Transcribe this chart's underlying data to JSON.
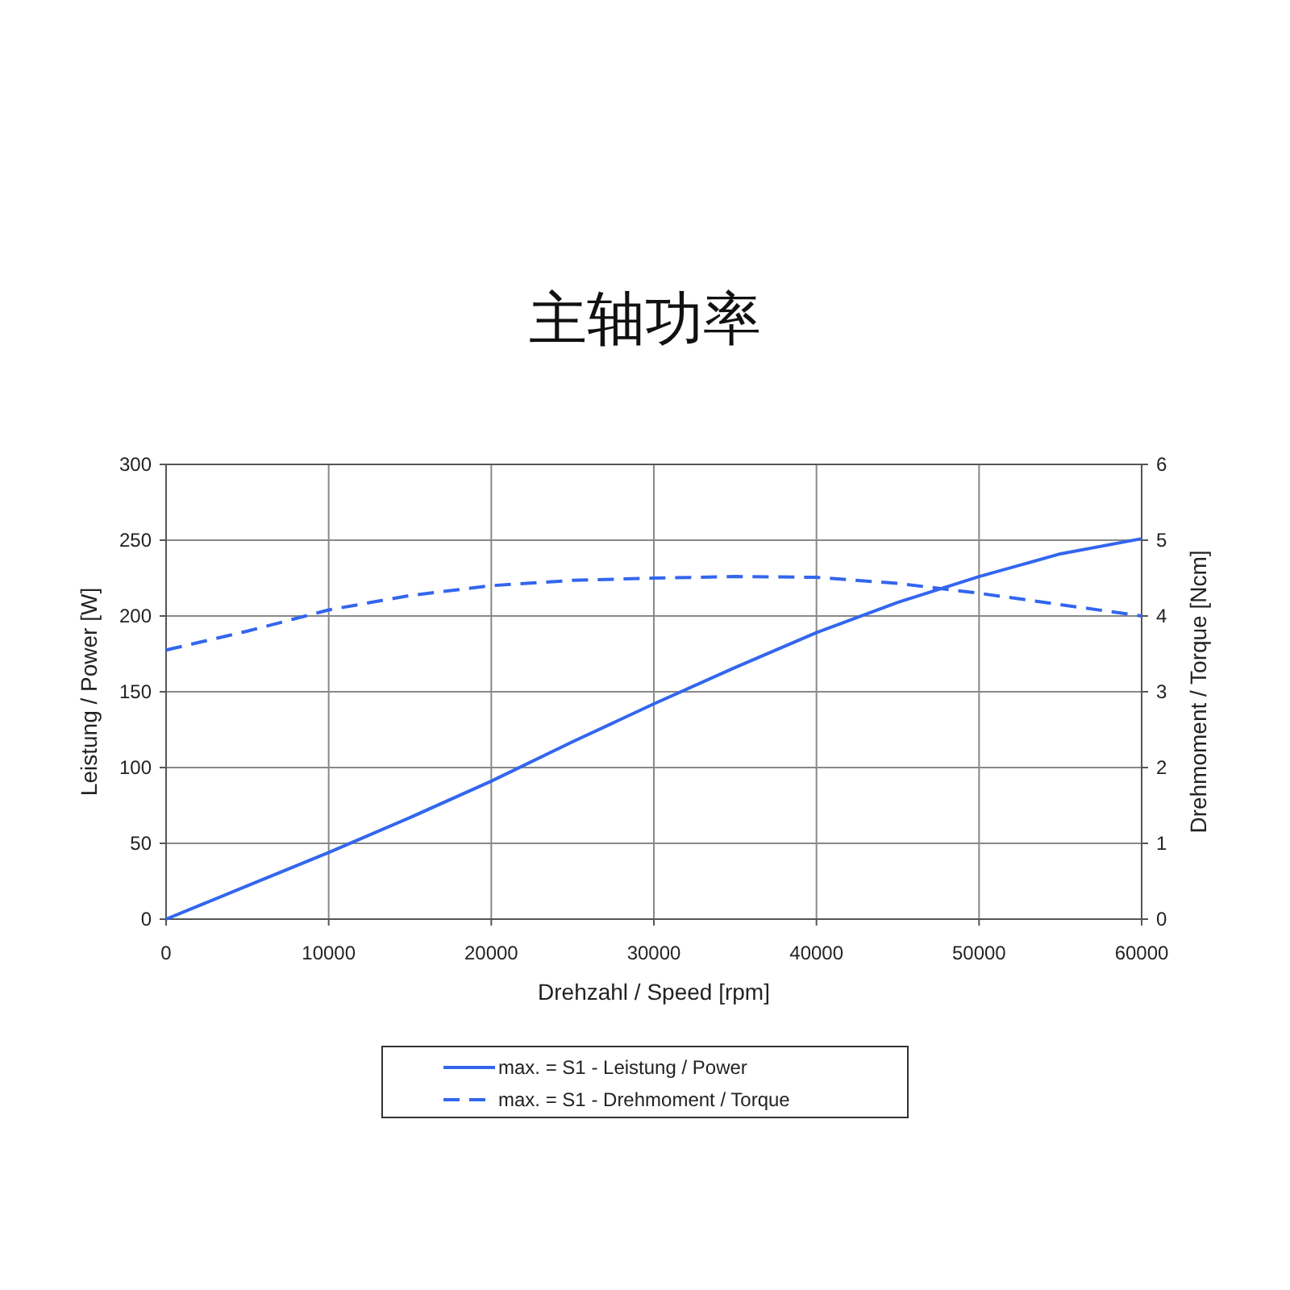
{
  "chart_data": {
    "type": "line",
    "title": "主轴功率",
    "xlabel": "Drehzahl / Speed [rpm]",
    "ylabel": "Leistung / Power [W]",
    "y2label": "Drehmoment / Torque [Ncm]",
    "x": [
      0,
      5000,
      10000,
      15000,
      20000,
      25000,
      30000,
      35000,
      40000,
      45000,
      50000,
      55000,
      60000
    ],
    "xlim": [
      0,
      60000
    ],
    "xticks": [
      0,
      10000,
      20000,
      30000,
      40000,
      50000,
      60000
    ],
    "ylim": [
      0,
      300
    ],
    "yticks": [
      0,
      50,
      100,
      150,
      200,
      250,
      300
    ],
    "y2lim": [
      0,
      6
    ],
    "y2ticks": [
      0,
      1,
      2,
      3,
      4,
      5,
      6
    ],
    "grid": true,
    "legend": "bottom",
    "series": [
      {
        "name": "max. = S1 - Leistung / Power",
        "color": "#3366ee",
        "line_style": "solid",
        "values": [
          0,
          22,
          44,
          67,
          91,
          117,
          142,
          166,
          189,
          209,
          226,
          241,
          251
        ]
      },
      {
        "name": "max. = S1 - Drehmoment / Torque",
        "color": "#3366ee",
        "line_style": "dashed",
        "axis": "y2",
        "values": [
          3.55,
          3.8,
          4.08,
          4.27,
          4.4,
          4.47,
          4.5,
          4.52,
          4.51,
          4.43,
          4.3,
          4.15,
          4.0
        ]
      }
    ]
  }
}
